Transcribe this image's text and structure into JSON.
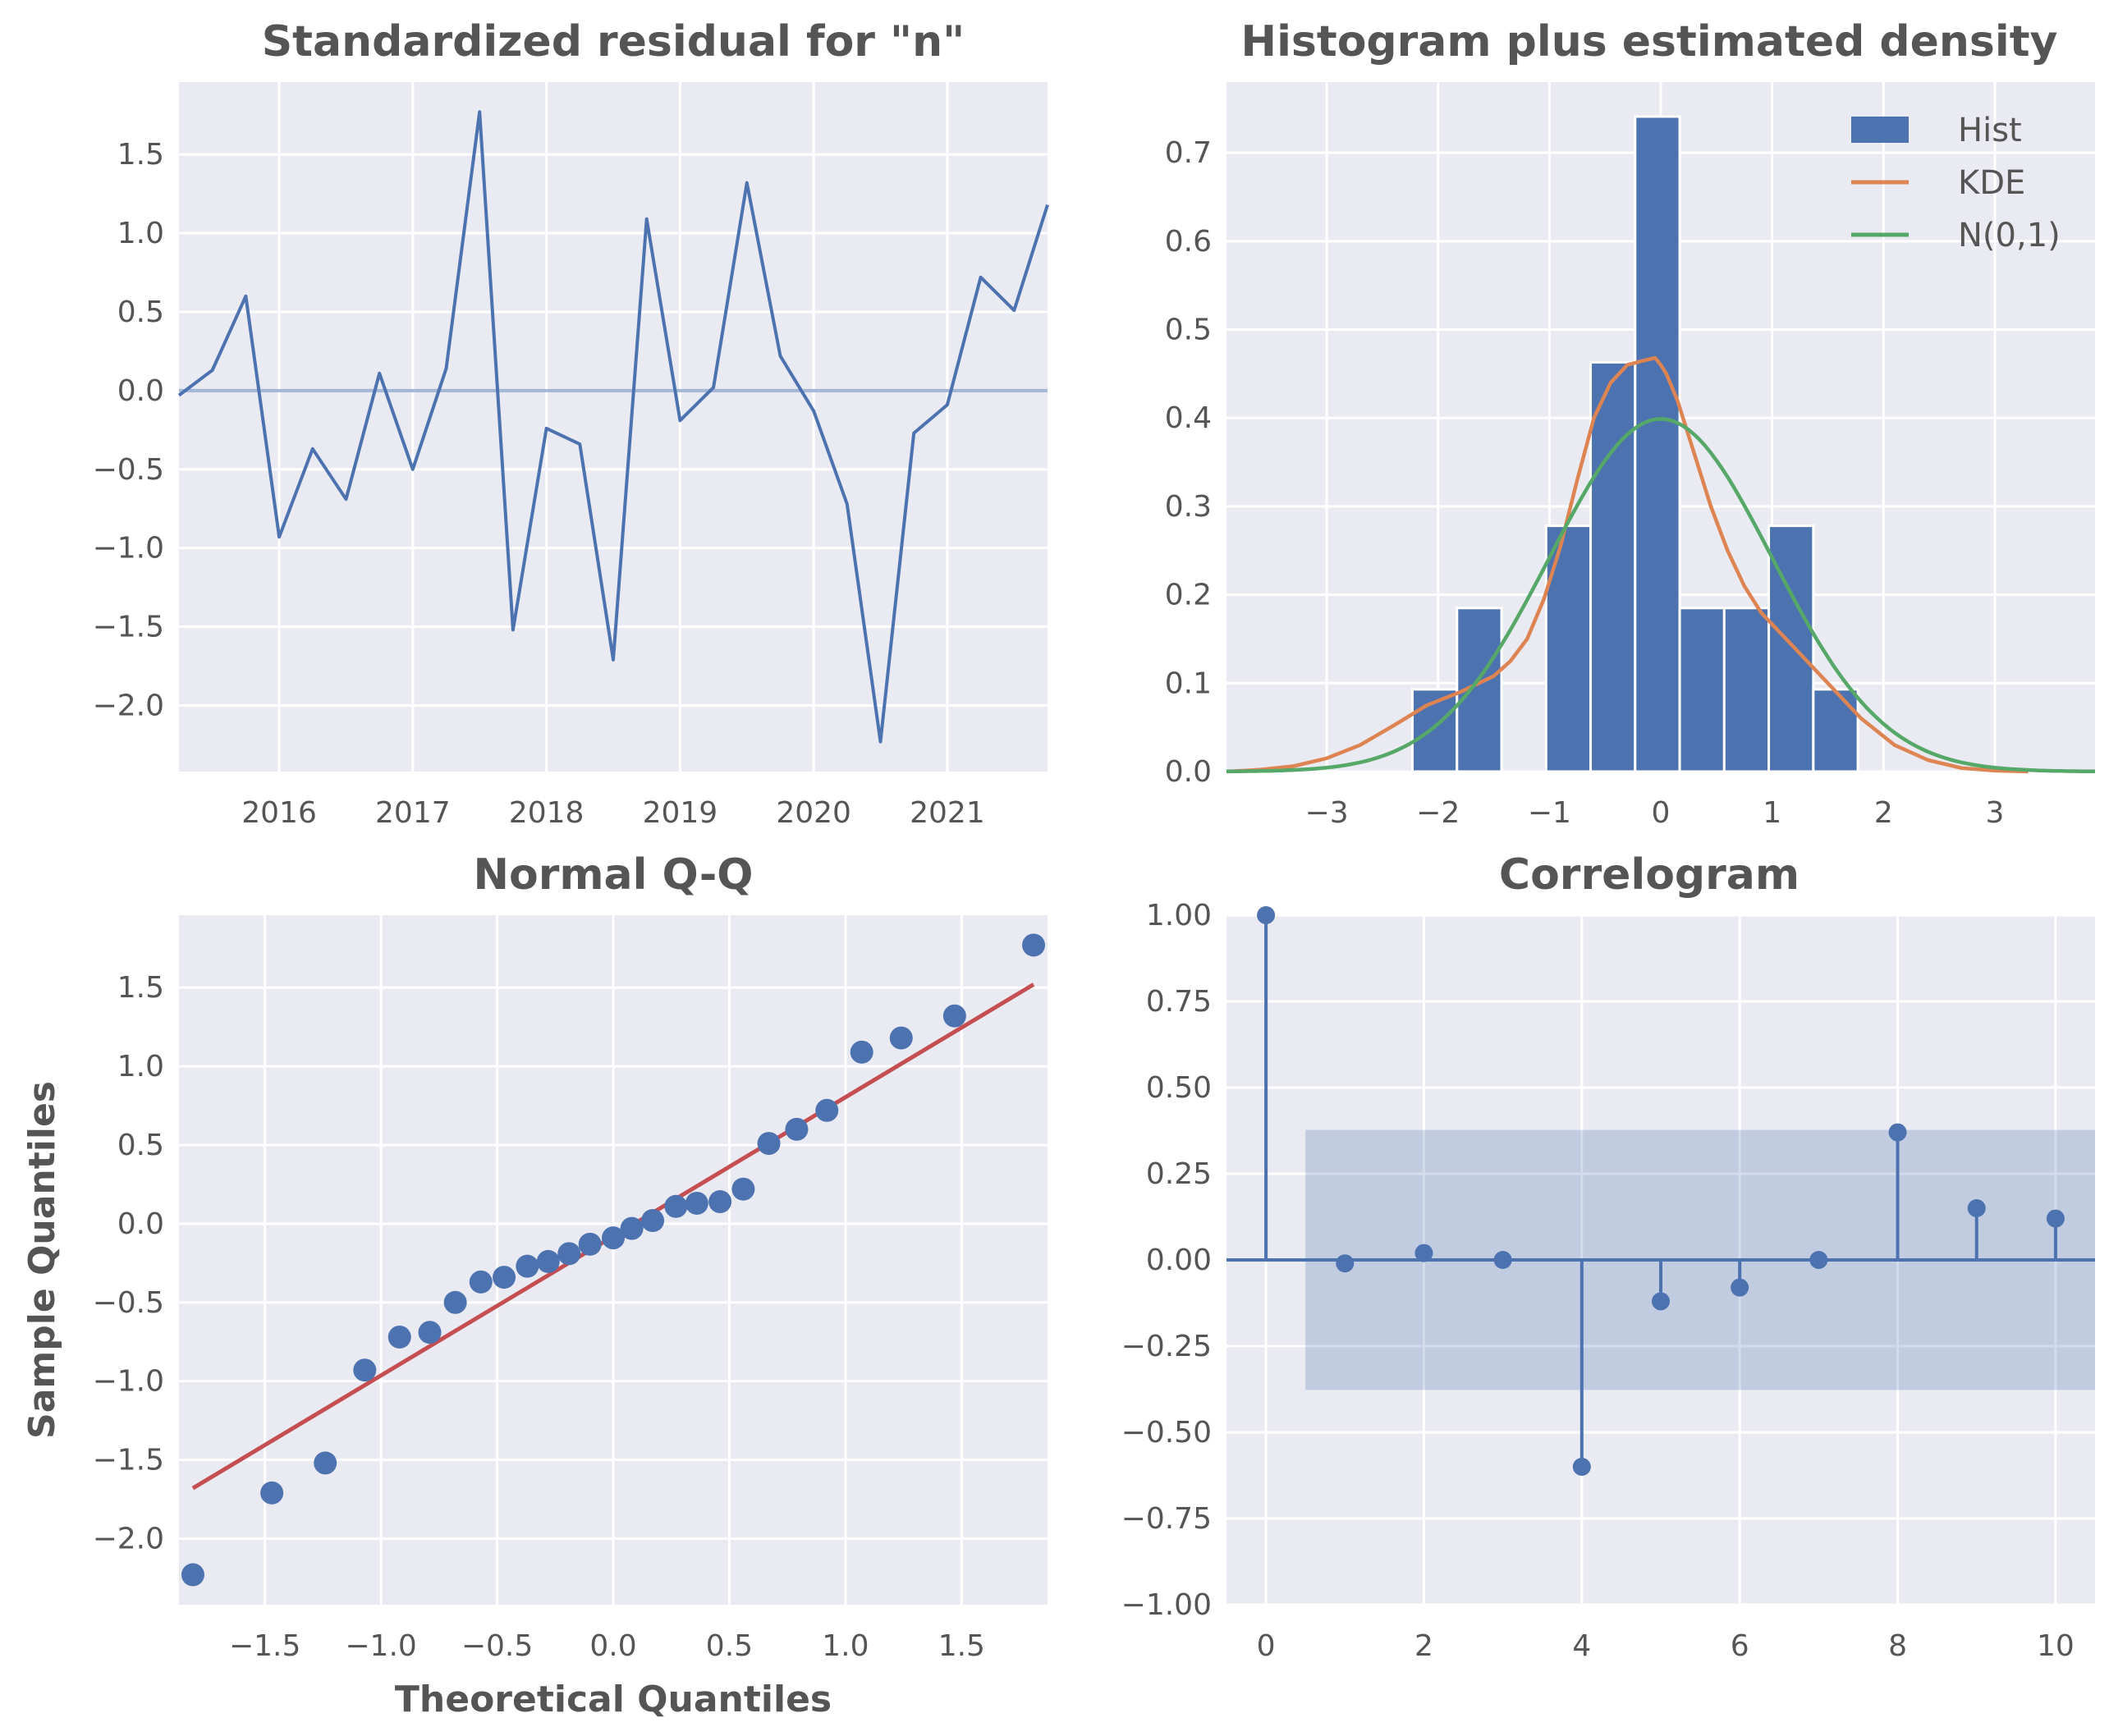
{
  "colors": {
    "plot_bg": "#EAEAF2",
    "grid": "#FFFFFF",
    "series": "#4C72B0",
    "kde": "#DD8452",
    "normal": "#55A868",
    "qq_line": "#C44E52",
    "text": "#555555"
  },
  "chart_data": [
    {
      "type": "line",
      "title": "Standardized residual for \"n\"",
      "xlabel": "",
      "ylabel": "",
      "x_tick_labels": [
        "2016",
        "2017",
        "2018",
        "2019",
        "2020",
        "2021"
      ],
      "y_tick_labels": [
        "−2.0",
        "−1.5",
        "−1.0",
        "−0.5",
        "0.0",
        "0.5",
        "1.0",
        "1.5"
      ],
      "x_unit": "quarter",
      "xlim": [
        2015.25,
        2021.75
      ],
      "ylim": [
        -2.42,
        1.96
      ],
      "grid": true,
      "reference_line": 0,
      "x": [
        2015.25,
        2015.5,
        2015.75,
        2016.0,
        2016.25,
        2016.5,
        2016.75,
        2017.0,
        2017.25,
        2017.5,
        2017.75,
        2018.0,
        2018.25,
        2018.5,
        2018.75,
        2019.0,
        2019.25,
        2019.5,
        2019.75,
        2020.0,
        2020.25,
        2020.5,
        2020.75,
        2021.0,
        2021.25,
        2021.5,
        2021.75
      ],
      "values": [
        -0.03,
        0.13,
        0.6,
        -0.93,
        -0.37,
        -0.69,
        0.11,
        -0.5,
        0.14,
        1.77,
        -1.52,
        -0.24,
        -0.34,
        -1.71,
        1.09,
        -0.19,
        0.02,
        1.32,
        0.22,
        -0.13,
        -0.72,
        -2.23,
        -0.27,
        -0.09,
        0.72,
        0.51,
        1.18
      ]
    },
    {
      "type": "bar",
      "title": "Histogram plus estimated density",
      "xlabel": "",
      "ylabel": "",
      "x_tick_labels": [
        "−3",
        "−2",
        "−1",
        "0",
        "1",
        "2",
        "3"
      ],
      "y_tick_labels": [
        "0.0",
        "0.1",
        "0.2",
        "0.3",
        "0.4",
        "0.5",
        "0.6",
        "0.7"
      ],
      "xlim": [
        -3.9,
        3.9
      ],
      "ylim": [
        0,
        0.78
      ],
      "grid": true,
      "legend": "top-right",
      "legend_labels": [
        "Hist",
        "KDE",
        "N(0,1)"
      ],
      "bins": [
        {
          "x0": -2.23,
          "x1": -1.83,
          "value": 0.093
        },
        {
          "x0": -1.83,
          "x1": -1.43,
          "value": 0.185
        },
        {
          "x0": -1.43,
          "x1": -1.03,
          "value": 0.0
        },
        {
          "x0": -1.03,
          "x1": -0.63,
          "value": 0.278
        },
        {
          "x0": -0.63,
          "x1": -0.23,
          "value": 0.463
        },
        {
          "x0": -0.23,
          "x1": 0.17,
          "value": 0.741
        },
        {
          "x0": 0.17,
          "x1": 0.57,
          "value": 0.185
        },
        {
          "x0": 0.57,
          "x1": 0.97,
          "value": 0.185
        },
        {
          "x0": 0.97,
          "x1": 1.37,
          "value": 0.278
        },
        {
          "x0": 1.37,
          "x1": 1.77,
          "value": 0.093
        }
      ],
      "kde": {
        "x": [
          -3.9,
          -3.6,
          -3.3,
          -3.0,
          -2.7,
          -2.4,
          -2.1,
          -1.8,
          -1.5,
          -1.35,
          -1.2,
          -1.05,
          -0.9,
          -0.75,
          -0.6,
          -0.45,
          -0.3,
          -0.15,
          -0.05,
          0.0,
          0.05,
          0.15,
          0.3,
          0.45,
          0.6,
          0.75,
          0.9,
          1.05,
          1.2,
          1.5,
          1.8,
          2.1,
          2.4,
          2.7,
          3.0,
          3.3
        ],
        "y": [
          0.0,
          0.002,
          0.006,
          0.015,
          0.03,
          0.052,
          0.075,
          0.09,
          0.108,
          0.125,
          0.15,
          0.195,
          0.255,
          0.33,
          0.4,
          0.44,
          0.46,
          0.465,
          0.468,
          0.46,
          0.45,
          0.42,
          0.36,
          0.3,
          0.25,
          0.21,
          0.18,
          0.16,
          0.14,
          0.1,
          0.06,
          0.03,
          0.013,
          0.004,
          0.001,
          0.0
        ]
      },
      "normal_mean": 0,
      "normal_std": 1
    },
    {
      "type": "scatter",
      "title": "Normal Q-Q",
      "xlabel": "Theoretical Quantiles",
      "ylabel": "Sample Quantiles",
      "x_tick_labels": [
        "−1.5",
        "−1.0",
        "−0.5",
        "0.0",
        "0.5",
        "1.0",
        "1.5"
      ],
      "y_tick_labels": [
        "−2.0",
        "−1.5",
        "−1.0",
        "−0.5",
        "0.0",
        "0.5",
        "1.0",
        "1.5"
      ],
      "xlim": [
        -1.87,
        1.87
      ],
      "ylim": [
        -2.42,
        1.96
      ],
      "grid": true,
      "points": [
        [
          -1.81,
          -2.23
        ],
        [
          -1.47,
          -1.71
        ],
        [
          -1.24,
          -1.52
        ],
        [
          -1.07,
          -0.93
        ],
        [
          -0.92,
          -0.72
        ],
        [
          -0.79,
          -0.69
        ],
        [
          -0.68,
          -0.5
        ],
        [
          -0.57,
          -0.37
        ],
        [
          -0.47,
          -0.34
        ],
        [
          -0.37,
          -0.27
        ],
        [
          -0.28,
          -0.24
        ],
        [
          -0.19,
          -0.19
        ],
        [
          -0.1,
          -0.13
        ],
        [
          0.0,
          -0.09
        ],
        [
          0.08,
          -0.03
        ],
        [
          0.17,
          0.02
        ],
        [
          0.27,
          0.11
        ],
        [
          0.36,
          0.13
        ],
        [
          0.46,
          0.14
        ],
        [
          0.56,
          0.22
        ],
        [
          0.67,
          0.51
        ],
        [
          0.79,
          0.6
        ],
        [
          0.92,
          0.72
        ],
        [
          1.07,
          1.09
        ],
        [
          1.24,
          1.18
        ],
        [
          1.47,
          1.32
        ],
        [
          1.81,
          1.77
        ]
      ],
      "fit_line": {
        "x": [
          -1.81,
          1.81
        ],
        "y": [
          -1.68,
          1.52
        ]
      }
    },
    {
      "type": "bar",
      "title": "Correlogram",
      "xlabel": "",
      "ylabel": "",
      "x_tick_labels": [
        "0",
        "2",
        "4",
        "6",
        "8",
        "10"
      ],
      "y_tick_labels": [
        "−1.00",
        "−0.75",
        "−0.50",
        "−0.25",
        "0.00",
        "0.25",
        "0.50",
        "0.75",
        "1.00"
      ],
      "xlim": [
        -0.5,
        10.5
      ],
      "ylim": [
        -1.0,
        1.0
      ],
      "grid": true,
      "lags": [
        0,
        1,
        2,
        3,
        4,
        5,
        6,
        7,
        8,
        9,
        10
      ],
      "values": [
        1.0,
        -0.01,
        0.02,
        0.0,
        -0.6,
        -0.12,
        -0.08,
        0.0,
        0.37,
        0.15,
        0.12
      ],
      "confidence_band": {
        "x": [
          0.5,
          10.5
        ],
        "upper": 0.377,
        "lower": -0.377
      }
    }
  ]
}
